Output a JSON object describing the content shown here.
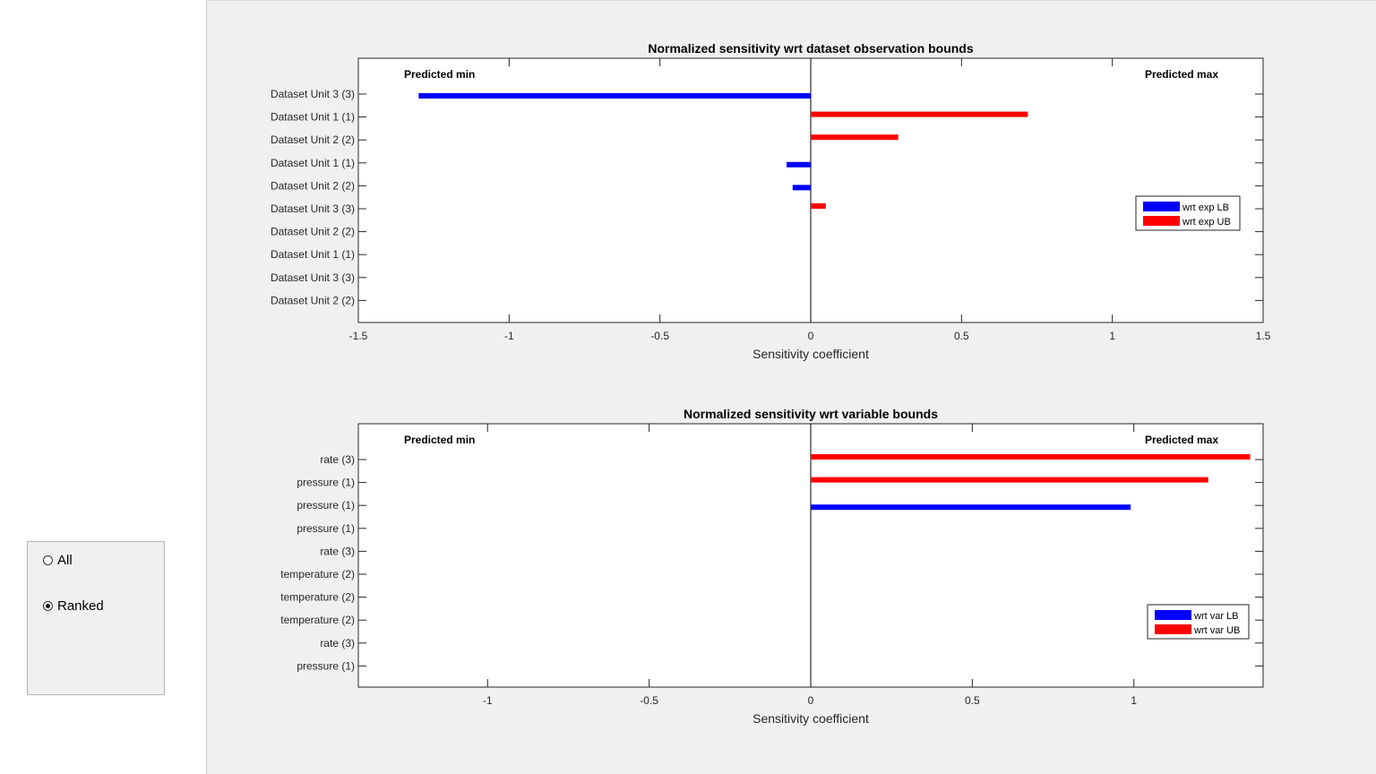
{
  "controls": {
    "options": [
      {
        "label": "All",
        "selected": false
      },
      {
        "label": "Ranked",
        "selected": true
      }
    ]
  },
  "colors": {
    "lb": "#0000ff",
    "ub": "#ff0000",
    "panel": "#f0f0f0"
  },
  "chart_data": [
    {
      "type": "bar",
      "orientation": "horizontal",
      "title": "Normalized sensitivity wrt dataset observation bounds",
      "xlabel": "Sensitivity coefficient",
      "xlim": [
        -1.5,
        1.5
      ],
      "xticks": [
        -1.5,
        -1,
        -0.5,
        0,
        0.5,
        1,
        1.5
      ],
      "xtick_labels": [
        "-1.5",
        "-1",
        "-0.5",
        "0",
        "0.5",
        "1",
        "1.5"
      ],
      "annotations": {
        "left": "Predicted min",
        "right": "Predicted max"
      },
      "legend_position": "right",
      "categories": [
        "Dataset Unit 3 (3)",
        "Dataset Unit 1 (1)",
        "Dataset Unit 2 (2)",
        "Dataset Unit 1 (1)",
        "Dataset Unit 2 (2)",
        "Dataset Unit 3 (3)",
        "Dataset Unit 2 (2)",
        "Dataset Unit 1 (1)",
        "Dataset Unit 3 (3)",
        "Dataset Unit 2 (2)"
      ],
      "series": [
        {
          "name": "wrt exp LB",
          "color": "#0000ff",
          "values": [
            -1.3,
            0,
            0,
            -0.08,
            -0.06,
            0,
            0,
            0,
            0,
            0
          ]
        },
        {
          "name": "wrt exp UB",
          "color": "#ff0000",
          "values": [
            0,
            0.72,
            0.29,
            0,
            0,
            0.05,
            0,
            0,
            0,
            0
          ]
        }
      ]
    },
    {
      "type": "bar",
      "orientation": "horizontal",
      "title": "Normalized sensitivity wrt variable bounds",
      "xlabel": "Sensitivity coefficient",
      "xlim": [
        -1.4,
        1.4
      ],
      "xticks": [
        -1,
        -0.5,
        0,
        0.5,
        1
      ],
      "xtick_labels": [
        "-1",
        "-0.5",
        "0",
        "0.5",
        "1"
      ],
      "annotations": {
        "left": "Predicted min",
        "right": "Predicted max"
      },
      "legend_position": "bottom-right",
      "categories": [
        "rate (3)",
        "pressure (1)",
        "pressure (1)",
        "pressure (1)",
        "rate (3)",
        "temperature (2)",
        "temperature (2)",
        "temperature (2)",
        "rate (3)",
        "pressure (1)"
      ],
      "series": [
        {
          "name": "wrt var LB",
          "color": "#0000ff",
          "values": [
            0,
            0,
            0.99,
            0,
            0,
            0,
            0,
            0,
            0,
            0
          ]
        },
        {
          "name": "wrt var UB",
          "color": "#ff0000",
          "values": [
            1.36,
            1.23,
            0,
            0,
            0,
            0,
            0,
            0,
            0,
            0
          ]
        }
      ]
    }
  ]
}
